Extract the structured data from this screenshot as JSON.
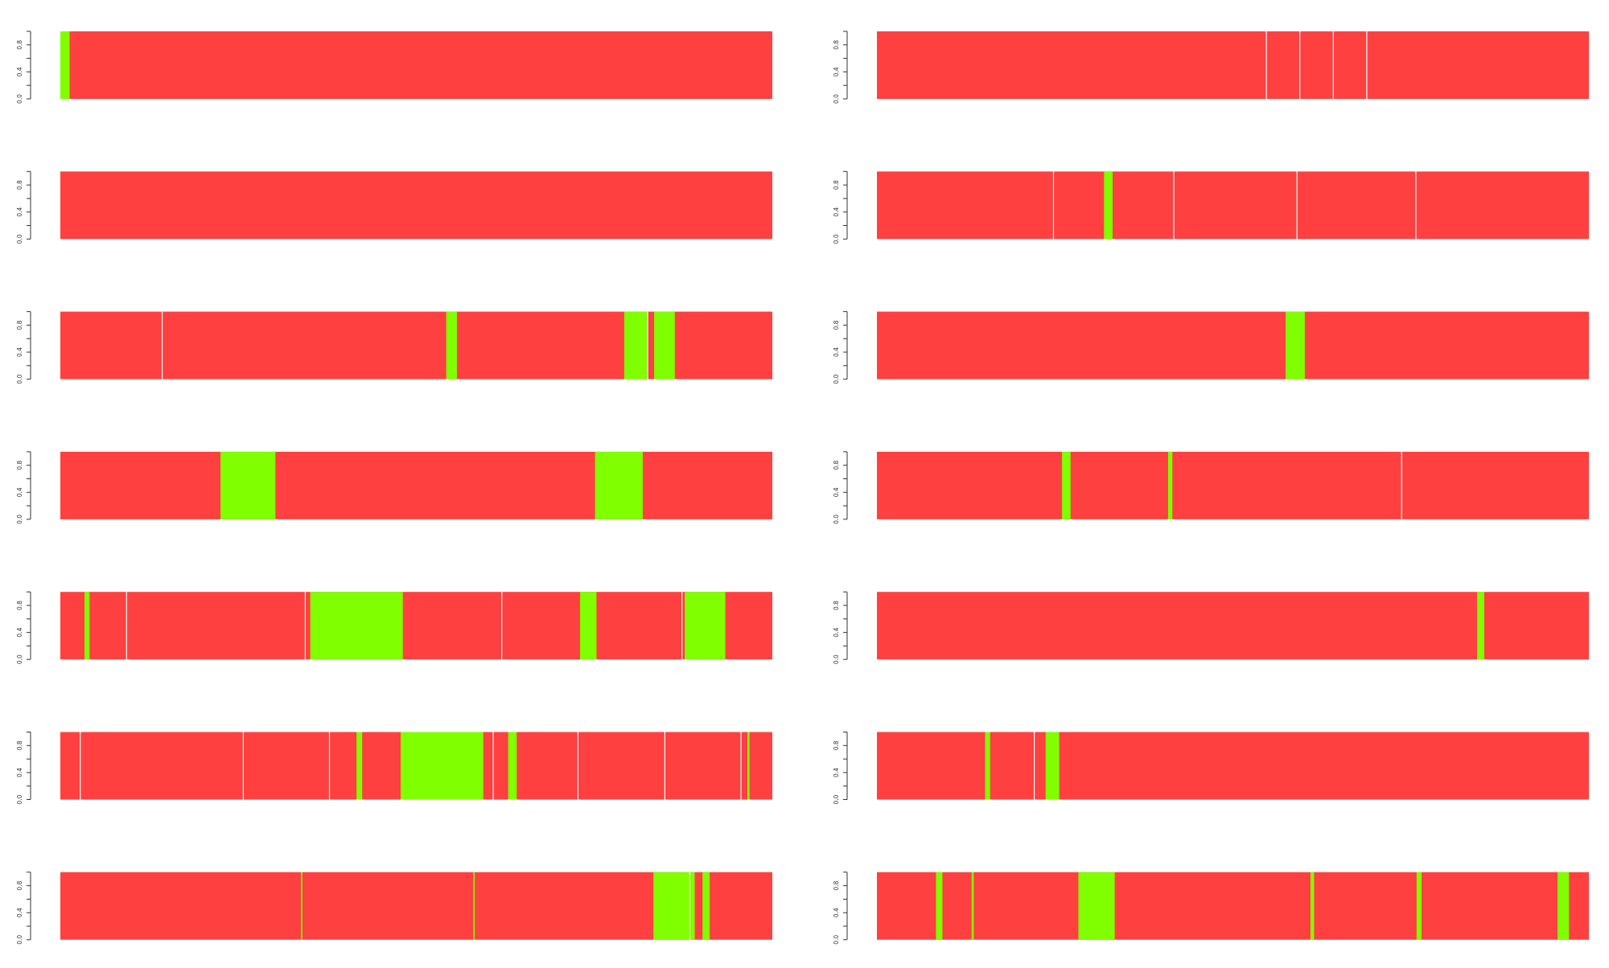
{
  "chart_data": {
    "type": "bar",
    "layout": "grid of 7 rows x 2 columns, stacked 100% bars per individual",
    "ylim": [
      0,
      1
    ],
    "yticks": [
      "0.0",
      "0.4",
      "0.8"
    ],
    "grid": false,
    "legend": "none",
    "colors": {
      "red": "#ff4040",
      "green": "#7fff00",
      "separator": "#ffffff"
    },
    "panels": [
      {
        "greens": [
          [
            0.0,
            0.013
          ]
        ],
        "seps": []
      },
      {
        "greens": [],
        "seps": [
          0.547,
          0.594,
          0.641,
          0.688
        ]
      },
      {
        "greens": [],
        "seps": []
      },
      {
        "greens": [
          [
            0.319,
            0.331
          ]
        ],
        "seps": [
          0.248,
          0.417,
          0.59,
          0.757
        ]
      },
      {
        "greens": [
          [
            0.542,
            0.557
          ],
          [
            0.792,
            0.822
          ],
          [
            0.822,
            0.825
          ],
          [
            0.834,
            0.863
          ]
        ],
        "seps": [
          0.143,
          0.825
        ]
      },
      {
        "greens": [
          [
            0.574,
            0.601
          ]
        ],
        "seps": []
      },
      {
        "greens": [
          [
            0.225,
            0.302
          ],
          [
            0.751,
            0.818
          ]
        ],
        "seps": []
      },
      {
        "greens": [
          [
            0.26,
            0.272
          ],
          [
            0.409,
            0.415
          ]
        ],
        "seps": [
          0.737
        ]
      },
      {
        "greens": [
          [
            0.034,
            0.041
          ],
          [
            0.351,
            0.481
          ],
          [
            0.73,
            0.753
          ],
          [
            0.877,
            0.934
          ]
        ],
        "seps": [
          0.093,
          0.344,
          0.62,
          0.873
        ]
      },
      {
        "greens": [
          [
            0.843,
            0.853
          ]
        ],
        "seps": []
      },
      {
        "greens": [
          [
            0.416,
            0.424
          ],
          [
            0.478,
            0.594
          ],
          [
            0.629,
            0.641
          ],
          [
            0.965,
            0.968
          ]
        ],
        "seps": [
          0.028,
          0.257,
          0.378,
          0.608,
          0.727,
          0.849,
          0.956
        ]
      },
      {
        "greens": [
          [
            0.152,
            0.159
          ],
          [
            0.237,
            0.256
          ]
        ],
        "seps": [
          0.221
        ]
      },
      {
        "greens": [
          [
            0.338,
            0.34
          ],
          [
            0.58,
            0.582
          ],
          [
            0.833,
            0.891
          ],
          [
            0.902,
            0.912
          ]
        ],
        "seps": [
          0.884
        ]
      },
      {
        "greens": [
          [
            0.083,
            0.092
          ],
          [
            0.133,
            0.136
          ],
          [
            0.283,
            0.334
          ],
          [
            0.609,
            0.614
          ],
          [
            0.758,
            0.765
          ],
          [
            0.956,
            0.972
          ]
        ],
        "seps": []
      }
    ]
  }
}
